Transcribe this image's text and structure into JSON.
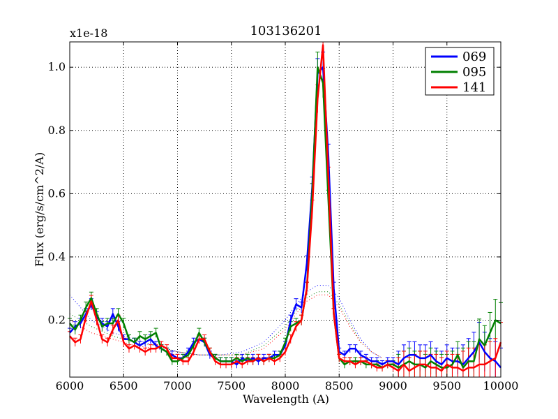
{
  "chart_data": {
    "type": "line",
    "title": "103136201",
    "xlabel": "Wavelength (A)",
    "ylabel": "Flux (erg/s/cm^2/A)",
    "offset_text": "x1e-18",
    "xlim": [
      6000,
      10000
    ],
    "ylim": [
      0.02,
      1.08
    ],
    "xticks": [
      6000,
      6500,
      7000,
      7500,
      8000,
      8500,
      9000,
      9500,
      10000
    ],
    "yticks": [
      0.2,
      0.4,
      0.6,
      0.8,
      1.0
    ],
    "ytick_labels": [
      "0.2",
      "0.4",
      "0.6",
      "0.8",
      "1.0"
    ],
    "grid": true,
    "legend_position": "top-right",
    "series": [
      {
        "name": "069",
        "color": "#0000ff",
        "x": [
          6000,
          6050,
          6100,
          6150,
          6200,
          6250,
          6300,
          6350,
          6400,
          6450,
          6500,
          6550,
          6600,
          6650,
          6700,
          6750,
          6800,
          6850,
          6900,
          6950,
          7000,
          7050,
          7100,
          7150,
          7200,
          7250,
          7300,
          7350,
          7400,
          7450,
          7500,
          7550,
          7600,
          7650,
          7700,
          7750,
          7800,
          7850,
          7900,
          7950,
          8000,
          8050,
          8100,
          8150,
          8200,
          8250,
          8300,
          8350,
          8400,
          8450,
          8500,
          8550,
          8600,
          8650,
          8700,
          8750,
          8800,
          8850,
          8900,
          8950,
          9000,
          9050,
          9100,
          9150,
          9200,
          9250,
          9300,
          9350,
          9400,
          9450,
          9500,
          9550,
          9600,
          9650,
          9700,
          9750,
          9800,
          9850,
          9900,
          9950,
          10000
        ],
        "y": [
          0.16,
          0.18,
          0.19,
          0.22,
          0.25,
          0.21,
          0.19,
          0.18,
          0.22,
          0.18,
          0.14,
          0.14,
          0.13,
          0.12,
          0.13,
          0.14,
          0.12,
          0.11,
          0.1,
          0.09,
          0.08,
          0.08,
          0.1,
          0.13,
          0.14,
          0.13,
          0.09,
          0.08,
          0.07,
          0.07,
          0.07,
          0.06,
          0.08,
          0.07,
          0.08,
          0.07,
          0.08,
          0.08,
          0.09,
          0.09,
          0.12,
          0.2,
          0.25,
          0.24,
          0.38,
          0.62,
          0.98,
          1.0,
          0.72,
          0.3,
          0.1,
          0.09,
          0.11,
          0.11,
          0.09,
          0.08,
          0.07,
          0.07,
          0.06,
          0.07,
          0.07,
          0.06,
          0.08,
          0.09,
          0.09,
          0.08,
          0.08,
          0.09,
          0.07,
          0.06,
          0.08,
          0.07,
          0.07,
          0.06,
          0.08,
          0.1,
          0.13,
          0.1,
          0.08,
          0.07,
          0.05
        ]
      },
      {
        "name": "095",
        "color": "#008000",
        "x": [
          6000,
          6050,
          6100,
          6150,
          6200,
          6250,
          6300,
          6350,
          6400,
          6450,
          6500,
          6550,
          6600,
          6650,
          6700,
          6750,
          6800,
          6850,
          6900,
          6950,
          7000,
          7050,
          7100,
          7150,
          7200,
          7250,
          7300,
          7350,
          7400,
          7450,
          7500,
          7550,
          7600,
          7650,
          7700,
          7750,
          7800,
          7850,
          7900,
          7950,
          8000,
          8050,
          8100,
          8150,
          8200,
          8250,
          8300,
          8350,
          8400,
          8450,
          8500,
          8550,
          8600,
          8650,
          8700,
          8750,
          8800,
          8850,
          8900,
          8950,
          9000,
          9050,
          9100,
          9150,
          9200,
          9250,
          9300,
          9350,
          9400,
          9450,
          9500,
          9550,
          9600,
          9650,
          9700,
          9750,
          9800,
          9850,
          9900,
          9950,
          10000
        ],
        "y": [
          0.19,
          0.17,
          0.2,
          0.24,
          0.27,
          0.22,
          0.18,
          0.19,
          0.19,
          0.22,
          0.19,
          0.14,
          0.13,
          0.15,
          0.14,
          0.15,
          0.16,
          0.11,
          0.1,
          0.07,
          0.07,
          0.08,
          0.09,
          0.12,
          0.16,
          0.13,
          0.1,
          0.08,
          0.07,
          0.07,
          0.07,
          0.08,
          0.07,
          0.08,
          0.07,
          0.08,
          0.07,
          0.08,
          0.08,
          0.09,
          0.13,
          0.18,
          0.19,
          0.2,
          0.3,
          0.6,
          1.0,
          0.95,
          0.58,
          0.22,
          0.08,
          0.06,
          0.07,
          0.07,
          0.07,
          0.06,
          0.06,
          0.06,
          0.05,
          0.06,
          0.06,
          0.05,
          0.06,
          0.07,
          0.06,
          0.06,
          0.05,
          0.07,
          0.06,
          0.05,
          0.05,
          0.06,
          0.09,
          0.05,
          0.07,
          0.07,
          0.14,
          0.12,
          0.16,
          0.2,
          0.19
        ]
      },
      {
        "name": "141",
        "color": "#ff0000",
        "x": [
          6000,
          6050,
          6100,
          6150,
          6200,
          6250,
          6300,
          6350,
          6400,
          6450,
          6500,
          6550,
          6600,
          6650,
          6700,
          6750,
          6800,
          6850,
          6900,
          6950,
          7000,
          7050,
          7100,
          7150,
          7200,
          7250,
          7300,
          7350,
          7400,
          7450,
          7500,
          7550,
          7600,
          7650,
          7700,
          7750,
          7800,
          7850,
          7900,
          7950,
          8000,
          8050,
          8100,
          8150,
          8200,
          8250,
          8300,
          8350,
          8400,
          8450,
          8500,
          8550,
          8600,
          8650,
          8700,
          8750,
          8800,
          8850,
          8900,
          8950,
          9000,
          9050,
          9100,
          9150,
          9200,
          9250,
          9300,
          9350,
          9400,
          9450,
          9500,
          9550,
          9600,
          9650,
          9700,
          9750,
          9800,
          9850,
          9900,
          9950,
          10000
        ],
        "y": [
          0.15,
          0.13,
          0.14,
          0.21,
          0.26,
          0.2,
          0.14,
          0.13,
          0.17,
          0.2,
          0.13,
          0.11,
          0.12,
          0.11,
          0.1,
          0.11,
          0.11,
          0.12,
          0.11,
          0.08,
          0.08,
          0.07,
          0.07,
          0.1,
          0.14,
          0.14,
          0.1,
          0.07,
          0.06,
          0.06,
          0.06,
          0.07,
          0.06,
          0.07,
          0.07,
          0.08,
          0.07,
          0.08,
          0.07,
          0.08,
          0.1,
          0.14,
          0.18,
          0.2,
          0.3,
          0.55,
          0.9,
          1.07,
          0.65,
          0.22,
          0.08,
          0.07,
          0.07,
          0.06,
          0.07,
          0.07,
          0.06,
          0.05,
          0.05,
          0.06,
          0.05,
          0.04,
          0.06,
          0.04,
          0.05,
          0.06,
          0.06,
          0.05,
          0.05,
          0.04,
          0.06,
          0.05,
          0.05,
          0.04,
          0.05,
          0.05,
          0.06,
          0.06,
          0.07,
          0.08,
          0.13
        ]
      }
    ],
    "model_curves": [
      {
        "color": "#0000ff",
        "x": [
          6000,
          6200,
          6400,
          6600,
          6800,
          7000,
          7200,
          7400,
          7600,
          7800,
          8000,
          8100,
          8200,
          8300,
          8400,
          8500,
          8600,
          8700,
          8800,
          8900
        ],
        "y": [
          0.28,
          0.2,
          0.16,
          0.14,
          0.12,
          0.1,
          0.09,
          0.09,
          0.1,
          0.13,
          0.2,
          0.25,
          0.29,
          0.31,
          0.31,
          0.27,
          0.2,
          0.14,
          0.1,
          0.08
        ]
      },
      {
        "color": "#008000",
        "x": [
          6000,
          6200,
          6400,
          6600,
          6800,
          7000,
          7200,
          7400,
          7600,
          7800,
          8000,
          8100,
          8200,
          8300,
          8400,
          8500,
          8600,
          8700,
          8800,
          8900
        ],
        "y": [
          0.22,
          0.18,
          0.15,
          0.13,
          0.12,
          0.1,
          0.09,
          0.09,
          0.09,
          0.12,
          0.18,
          0.23,
          0.27,
          0.29,
          0.29,
          0.25,
          0.19,
          0.13,
          0.1,
          0.08
        ]
      },
      {
        "color": "#ff0000",
        "x": [
          6000,
          6200,
          6400,
          6600,
          6800,
          7000,
          7200,
          7400,
          7600,
          7800,
          8000,
          8100,
          8200,
          8300,
          8400,
          8500,
          8600,
          8700,
          8800,
          8900
        ],
        "y": [
          0.2,
          0.16,
          0.14,
          0.12,
          0.11,
          0.1,
          0.09,
          0.09,
          0.09,
          0.11,
          0.17,
          0.22,
          0.26,
          0.28,
          0.28,
          0.24,
          0.18,
          0.13,
          0.1,
          0.08
        ]
      }
    ]
  }
}
